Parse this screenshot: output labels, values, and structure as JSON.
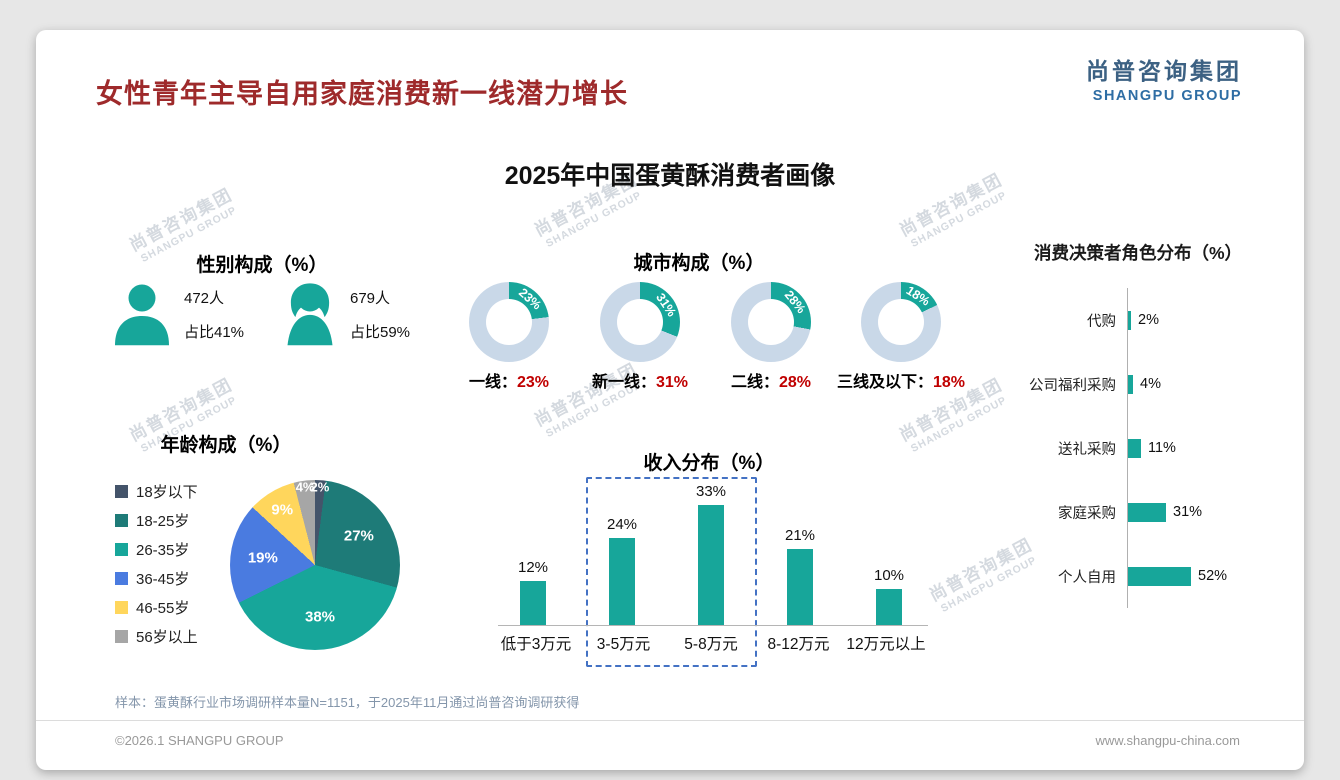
{
  "page": {
    "main_title": "女性青年主导自用家庭消费新一线潜力增长",
    "chart_title": "2025年中国蛋黄酥消费者画像",
    "footnote": "样本：蛋黄酥行业市场调研样本量N=1151，于2025年11月通过尚普咨询调研获得",
    "footer_left": "©2026.1 SHANGPU GROUP",
    "footer_right": "www.shangpu-china.com"
  },
  "logo": {
    "cn": "尚普咨询集团",
    "en": "SHANGPU GROUP"
  },
  "watermark": {
    "cn": "尚普咨询集团",
    "en": "SHANGPU GROUP"
  },
  "colors": {
    "accent_teal": "#17A69A",
    "donut_remainder": "#C9D8E8",
    "percent_red": "#C00000",
    "title_red": "#9E2A2B",
    "highlight_dash_blue": "#4472C4"
  },
  "chart_data": [
    {
      "type": "pictogram",
      "title": "性别构成（%）",
      "groups": [
        {
          "icon": "male-icon",
          "count": "472人",
          "share": "占比41%"
        },
        {
          "icon": "female-icon",
          "count": "679人",
          "share": "占比59%"
        }
      ]
    },
    {
      "type": "pie",
      "subtype": "donut-set",
      "title": "城市构成（%）",
      "unit": "%",
      "items": [
        {
          "label": "一线",
          "value": 23
        },
        {
          "label": "新一线",
          "value": 31
        },
        {
          "label": "二线",
          "value": 28
        },
        {
          "label": "三线及以下",
          "value": 18
        }
      ]
    },
    {
      "type": "pie",
      "title": "年龄构成（%）",
      "unit": "%",
      "slices": [
        {
          "label": "18岁以下",
          "value": 2,
          "color": "#44546A"
        },
        {
          "label": "18-25岁",
          "value": 27,
          "color": "#1E7B78"
        },
        {
          "label": "26-35岁",
          "value": 38,
          "color": "#17A69A"
        },
        {
          "label": "36-45岁",
          "value": 19,
          "color": "#4A7BE0"
        },
        {
          "label": "46-55岁",
          "value": 9,
          "color": "#FFD65C"
        },
        {
          "label": "56岁以上",
          "value": 4,
          "color": "#A6A6A6"
        }
      ]
    },
    {
      "type": "bar",
      "title": "收入分布（%）",
      "unit": "%",
      "categories": [
        "低于3万元",
        "3-5万元",
        "5-8万元",
        "8-12万元",
        "12万元以上"
      ],
      "values": [
        12,
        24,
        33,
        21,
        10
      ],
      "highlighted_categories": [
        "3-5万元",
        "5-8万元"
      ],
      "ylim": [
        0,
        40
      ]
    },
    {
      "type": "bar",
      "subtype": "horizontal",
      "title": "消费决策者角色分布（%）",
      "unit": "%",
      "categories": [
        "代购",
        "公司福利采购",
        "送礼采购",
        "家庭采购",
        "个人自用"
      ],
      "values": [
        2,
        4,
        11,
        31,
        52
      ]
    }
  ]
}
